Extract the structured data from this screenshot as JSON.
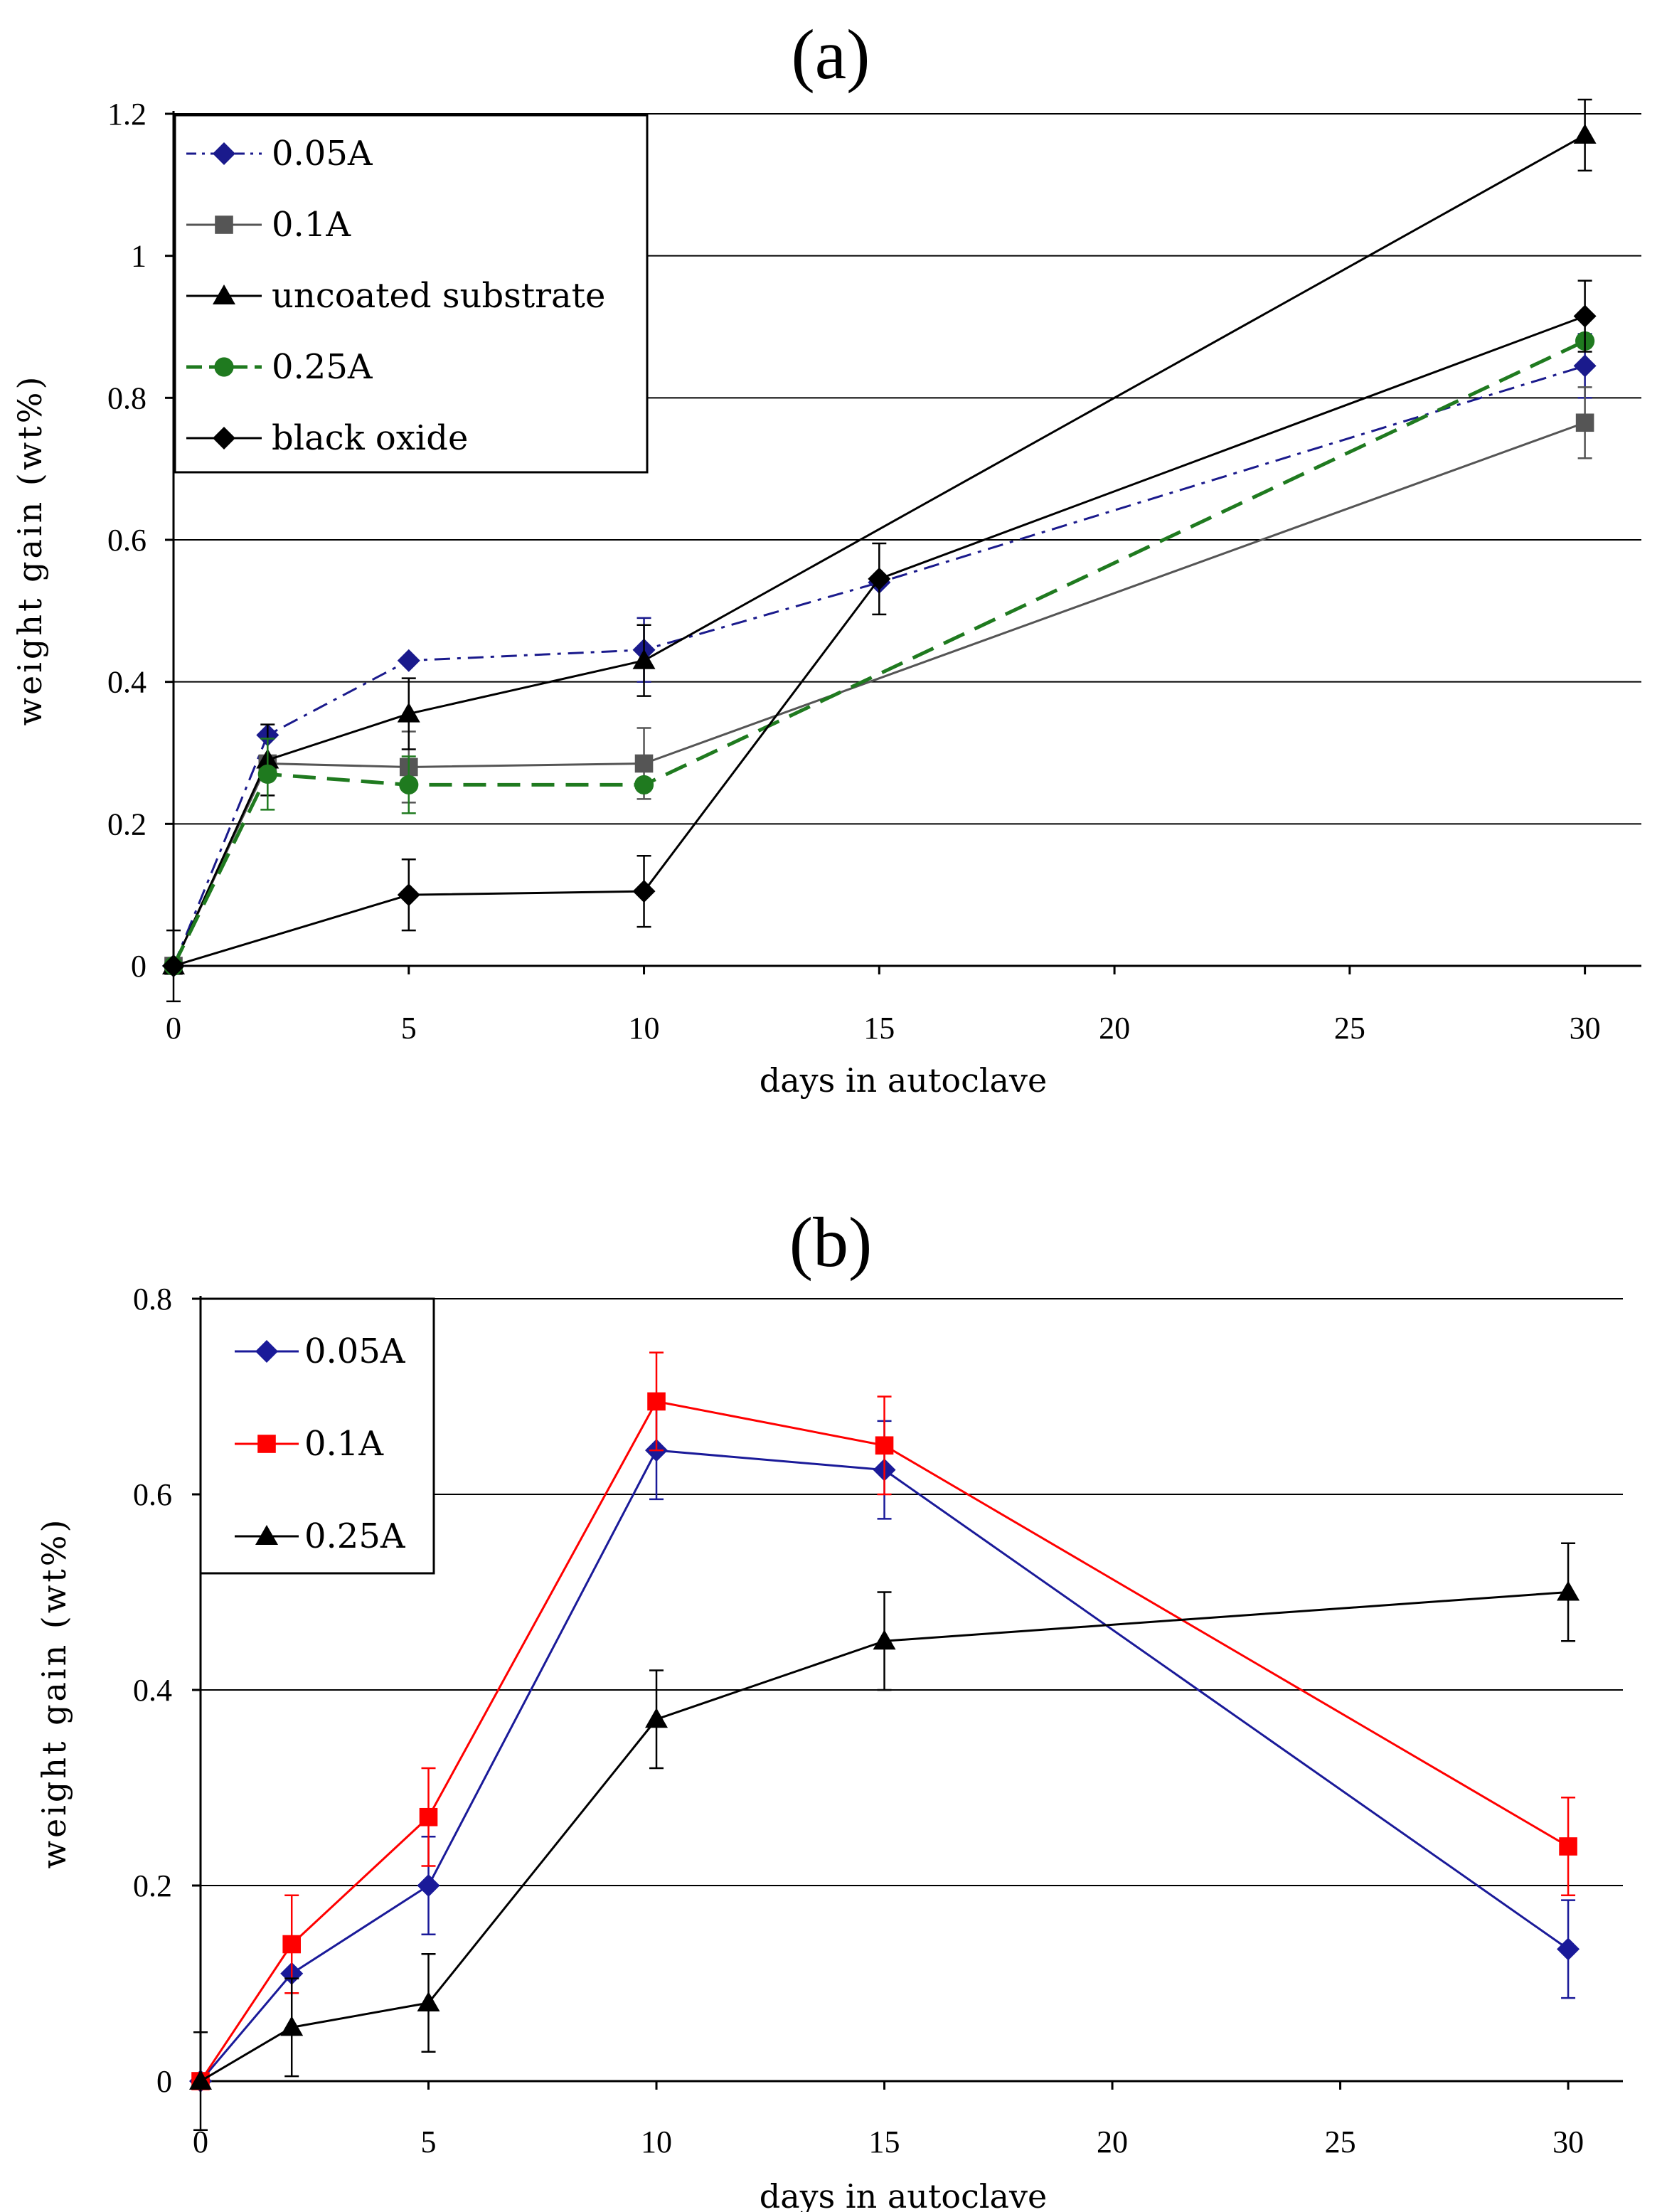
{
  "chart_data": [
    {
      "type": "line",
      "panel_label": "(a)",
      "xlabel": "days in autoclave",
      "ylabel": "weight gain (wt%)",
      "xlim": [
        0,
        31.2
      ],
      "ylim": [
        0,
        1.2
      ],
      "x_ticks": [
        0,
        5,
        10,
        15,
        20,
        25,
        30
      ],
      "y_ticks": [
        0,
        0.2,
        0.4,
        0.6,
        0.8,
        1,
        1.2
      ],
      "y_tick_labels": [
        "0",
        "0.2",
        "0.4",
        "0.6",
        "0.8",
        "1",
        "1.2"
      ],
      "gridlines": [
        0.2,
        0.4,
        0.6,
        0.8,
        1,
        1.2
      ],
      "grid": true,
      "legend_position": "top-left",
      "series": [
        {
          "name": "0.05A",
          "color": "#1a1a8c",
          "marker": "diamond",
          "dash": "dashdot",
          "width": 3,
          "x": [
            0,
            2,
            5,
            10,
            15,
            30
          ],
          "y": [
            0,
            0.325,
            0.43,
            0.445,
            0.54,
            0.845
          ],
          "err": [
            0,
            0,
            0,
            0.045,
            0,
            0.045
          ]
        },
        {
          "name": "0.1A",
          "color": "#555555",
          "marker": "square",
          "dash": "solid",
          "width": 3,
          "x": [
            0,
            2,
            5,
            10,
            30
          ],
          "y": [
            0,
            0.285,
            0.28,
            0.285,
            0.765
          ],
          "err": [
            0,
            0,
            0.05,
            0.05,
            0.05
          ]
        },
        {
          "name": "uncoated substrate",
          "color": "#000000",
          "marker": "triangle",
          "dash": "solid",
          "width": 3,
          "x": [
            0,
            2,
            5,
            10,
            30
          ],
          "y": [
            0,
            0.29,
            0.355,
            0.43,
            1.17
          ],
          "err": [
            0.05,
            0.05,
            0.05,
            0.05,
            0.05
          ]
        },
        {
          "name": "0.25A",
          "color": "#1f7a1f",
          "marker": "circle",
          "dash": "dashed",
          "width": 5,
          "x": [
            0,
            2,
            5,
            10,
            30
          ],
          "y": [
            0,
            0.27,
            0.255,
            0.255,
            0.88
          ],
          "err": [
            0,
            0.05,
            0.04,
            0,
            0
          ]
        },
        {
          "name": "black oxide",
          "color": "#000000",
          "marker": "diamond",
          "dash": "solid",
          "width": 3,
          "x": [
            0,
            5,
            10,
            15,
            30
          ],
          "y": [
            0,
            0.1,
            0.105,
            0.545,
            0.915
          ],
          "err": [
            0,
            0.05,
            0.05,
            0.05,
            0.05
          ]
        }
      ]
    },
    {
      "type": "line",
      "panel_label": "(b)",
      "xlabel": "days in autoclave",
      "ylabel": "weight gain (wt%)",
      "xlim": [
        0,
        31.2
      ],
      "ylim": [
        0,
        0.8
      ],
      "x_ticks": [
        0,
        5,
        10,
        15,
        20,
        25,
        30
      ],
      "y_ticks": [
        0,
        0.2,
        0.4,
        0.6,
        0.8
      ],
      "y_tick_labels": [
        "0",
        "0.2",
        "0.4",
        "0.6",
        "0.8"
      ],
      "gridlines": [
        0.2,
        0.4,
        0.6,
        0.8
      ],
      "grid": true,
      "legend_position": "top-left",
      "series": [
        {
          "name": "0.05A",
          "color": "#1a1a99",
          "marker": "diamond",
          "dash": "solid",
          "width": 3,
          "x": [
            0,
            2,
            5,
            10,
            15,
            30
          ],
          "y": [
            0,
            0.11,
            0.2,
            0.645,
            0.625,
            0.135
          ],
          "err": [
            0,
            0,
            0.05,
            0.05,
            0.05,
            0.05
          ]
        },
        {
          "name": "0.1A",
          "color": "#ff0000",
          "marker": "square",
          "dash": "solid",
          "width": 3,
          "x": [
            0,
            2,
            5,
            10,
            15,
            30
          ],
          "y": [
            0,
            0.14,
            0.27,
            0.695,
            0.65,
            0.24
          ],
          "err": [
            0,
            0.05,
            0.05,
            0.05,
            0.05,
            0.05
          ]
        },
        {
          "name": "0.25A",
          "color": "#000000",
          "marker": "triangle",
          "dash": "solid",
          "width": 3,
          "x": [
            0,
            2,
            5,
            10,
            15,
            30
          ],
          "y": [
            0,
            0.055,
            0.08,
            0.37,
            0.45,
            0.5
          ],
          "err": [
            0.05,
            0.05,
            0.05,
            0.05,
            0.05,
            0.05
          ]
        }
      ]
    }
  ]
}
